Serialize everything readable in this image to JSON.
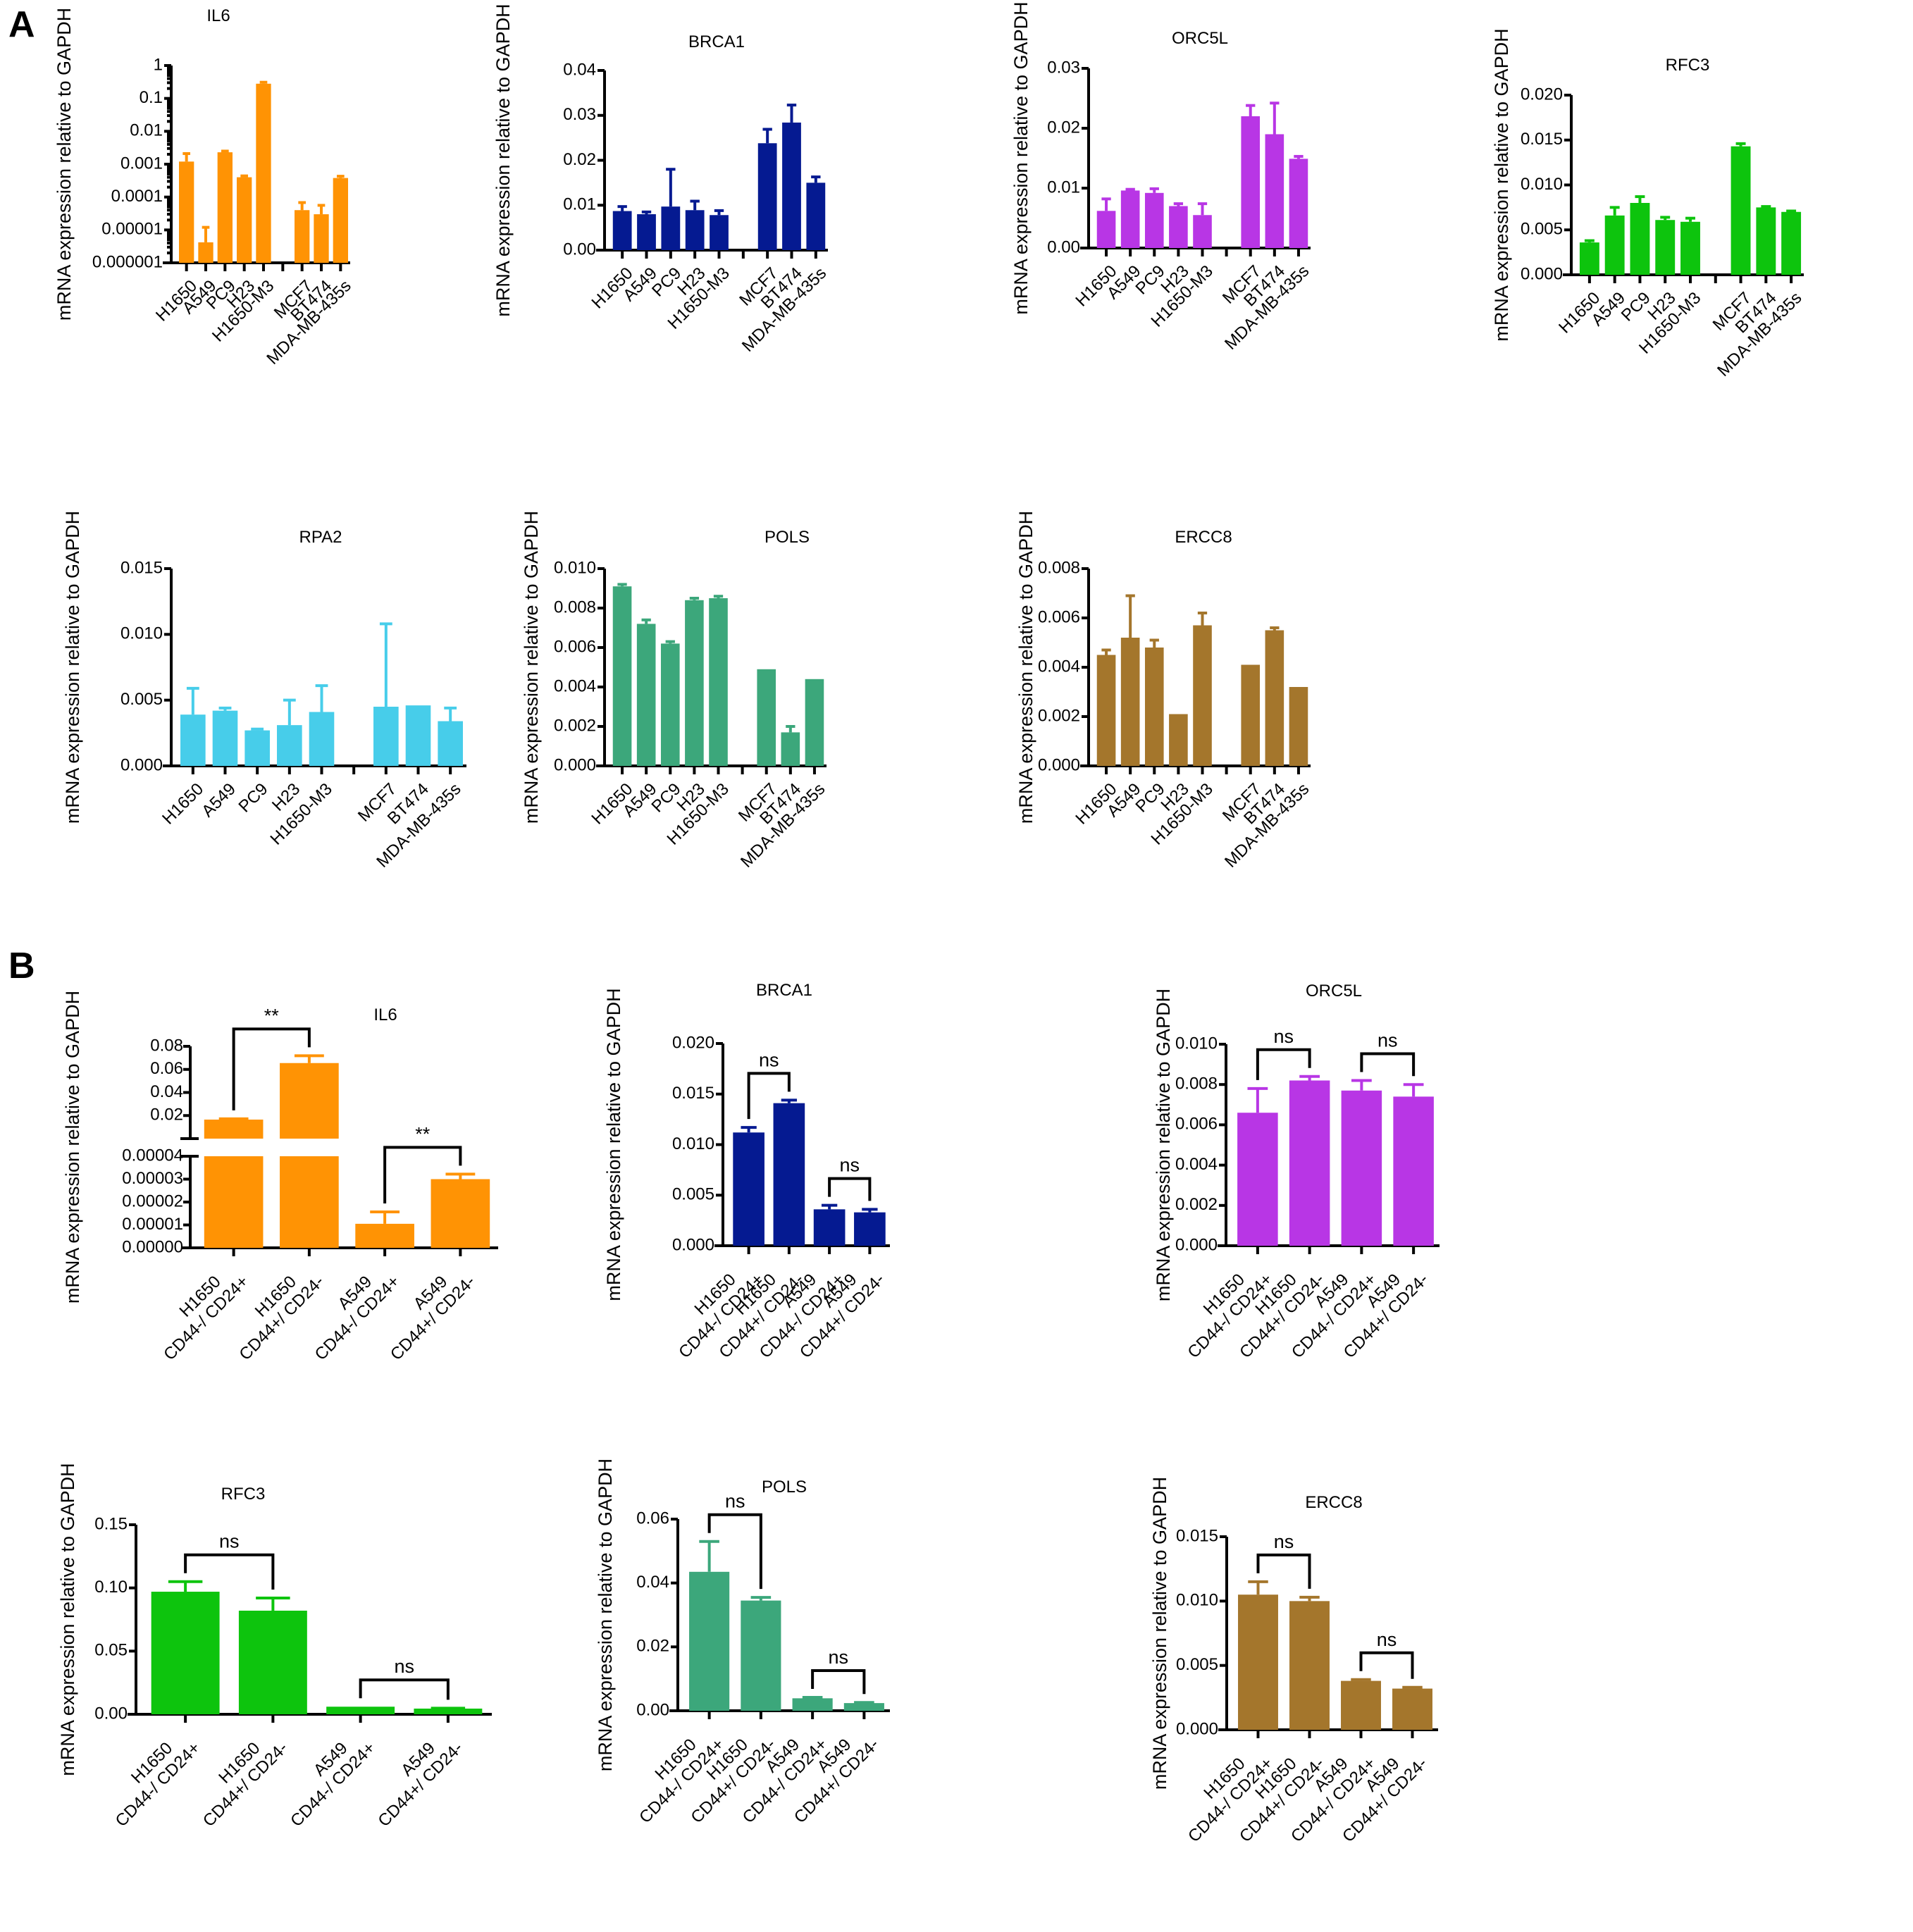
{
  "panels": {
    "A": "A",
    "B": "B"
  },
  "colors": {
    "IL6": "#FF9304",
    "BRCA1": "#051A91",
    "ORC5L": "#B836E5",
    "RFC3": "#0DC40D",
    "RPA2": "#47CDEA",
    "POLS": "#3CA77B",
    "ERCC8": "#A4762C"
  },
  "chart_data": [
    {
      "id": "A-IL6",
      "panel": "A",
      "type": "bar",
      "title": "IL6",
      "ylabel": "mRNA expression relative to GAPDH",
      "yscale": "log",
      "ylim": [
        1e-06,
        1
      ],
      "yticks": [
        1,
        0.1,
        0.01,
        0.001,
        0.0001,
        1e-05,
        1e-06
      ],
      "ytick_labels": [
        "1",
        "0.1",
        "0.01",
        "0.001",
        "0.0001",
        "0.00001",
        "0.000001"
      ],
      "categories": [
        "H1650",
        "A549",
        "PC9",
        "H23",
        "H1650-M3",
        "",
        "MCF7",
        "BT474",
        "MDA-MB-435s"
      ],
      "values": [
        0.0012,
        4.2e-06,
        0.0023,
        0.0004,
        0.28,
        null,
        4e-05,
        3e-05,
        0.00038
      ],
      "error_upper": [
        0.0021,
        1.2e-05,
        0.0025,
        0.00044,
        0.31,
        null,
        6.8e-05,
        5.6e-05,
        0.00043
      ],
      "color_key": "IL6"
    },
    {
      "id": "A-BRCA1",
      "panel": "A",
      "type": "bar",
      "title": "BRCA1",
      "ylabel": "mRNA expression relative to GAPDH",
      "yscale": "linear",
      "ylim": [
        0,
        0.04
      ],
      "yticks": [
        0,
        0.01,
        0.02,
        0.03,
        0.04
      ],
      "ytick_labels": [
        "0.00",
        "0.01",
        "0.02",
        "0.03",
        "0.04"
      ],
      "categories": [
        "H1650",
        "A549",
        "PC9",
        "H23",
        "H1650-M3",
        "",
        "MCF7",
        "BT474",
        "MDA-MB-435s"
      ],
      "values": [
        0.0087,
        0.008,
        0.0097,
        0.0089,
        0.0078,
        null,
        0.0238,
        0.0284,
        0.015
      ],
      "error_upper": [
        0.0097,
        0.0085,
        0.018,
        0.0109,
        0.0088,
        null,
        0.0269,
        0.0323,
        0.0163
      ],
      "color_key": "BRCA1"
    },
    {
      "id": "A-ORC5L",
      "panel": "A",
      "type": "bar",
      "title": "ORC5L",
      "ylabel": "mRNA expression relative to GAPDH",
      "yscale": "linear",
      "ylim": [
        0,
        0.03
      ],
      "yticks": [
        0,
        0.01,
        0.02,
        0.03
      ],
      "ytick_labels": [
        "0.00",
        "0.01",
        "0.02",
        "0.03"
      ],
      "categories": [
        "H1650",
        "A549",
        "PC9",
        "H23",
        "H1650-M3",
        "",
        "MCF7",
        "BT474",
        "MDA-MB-435s"
      ],
      "values": [
        0.0062,
        0.0096,
        0.0092,
        0.007,
        0.0055,
        null,
        0.022,
        0.019,
        0.0149
      ],
      "error_upper": [
        0.0082,
        0.0098,
        0.0099,
        0.0074,
        0.0074,
        null,
        0.0238,
        0.0242,
        0.0153
      ],
      "color_key": "ORC5L"
    },
    {
      "id": "A-RFC3",
      "panel": "A",
      "type": "bar",
      "title": "RFC3",
      "ylabel": "mRNA expression relative to GAPDH",
      "yscale": "linear",
      "ylim": [
        0,
        0.02
      ],
      "yticks": [
        0,
        0.005,
        0.01,
        0.015,
        0.02
      ],
      "ytick_labels": [
        "0.000",
        "0.005",
        "0.010",
        "0.015",
        "0.020"
      ],
      "categories": [
        "H1650",
        "A549",
        "PC9",
        "H23",
        "H1650-M3",
        "",
        "MCF7",
        "BT474",
        "MDA-MB-435s"
      ],
      "values": [
        0.0036,
        0.0066,
        0.008,
        0.0061,
        0.0059,
        null,
        0.0143,
        0.0075,
        0.007
      ],
      "error_upper": [
        0.0038,
        0.0075,
        0.0087,
        0.0064,
        0.0063,
        null,
        0.0146,
        0.0076,
        0.0071
      ],
      "color_key": "RFC3"
    },
    {
      "id": "A-RPA2",
      "panel": "A",
      "type": "bar",
      "title": "RPA2",
      "ylabel": "mRNA expression relative to GAPDH",
      "yscale": "linear",
      "ylim": [
        0,
        0.015
      ],
      "yticks": [
        0,
        0.005,
        0.01,
        0.015
      ],
      "ytick_labels": [
        "0.000",
        "0.005",
        "0.010",
        "0.015"
      ],
      "categories": [
        "H1650",
        "A549",
        "PC9",
        "H23",
        "H1650-M3",
        "",
        "MCF7",
        "BT474",
        "MDA-MB-435s"
      ],
      "values": [
        0.0039,
        0.0042,
        0.0027,
        0.0031,
        0.0041,
        null,
        0.0045,
        0.0046,
        0.0034
      ],
      "error_upper": [
        0.0059,
        0.0044,
        0.0028,
        0.005,
        0.0061,
        null,
        0.0108,
        0.0046,
        0.0044
      ],
      "color_key": "RPA2"
    },
    {
      "id": "A-POLS",
      "panel": "A",
      "type": "bar",
      "title": "POLS",
      "ylabel": "mRNA expression relative to GAPDH",
      "yscale": "linear",
      "ylim": [
        0,
        0.01
      ],
      "yticks": [
        0,
        0.002,
        0.004,
        0.006,
        0.008,
        0.01
      ],
      "ytick_labels": [
        "0.000",
        "0.002",
        "0.004",
        "0.006",
        "0.008",
        "0.010"
      ],
      "categories": [
        "H1650",
        "A549",
        "PC9",
        "H23",
        "H1650-M3",
        "",
        "MCF7",
        "BT474",
        "MDA-MB-435s"
      ],
      "values": [
        0.0091,
        0.0072,
        0.0062,
        0.0084,
        0.0085,
        null,
        0.0049,
        0.0017,
        0.0044
      ],
      "error_upper": [
        0.0092,
        0.0074,
        0.0063,
        0.0085,
        0.0086,
        null,
        0.0049,
        0.002,
        0.0044
      ],
      "color_key": "POLS"
    },
    {
      "id": "A-ERCC8",
      "panel": "A",
      "type": "bar",
      "title": "ERCC8",
      "ylabel": "mRNA expression relative to GAPDH",
      "yscale": "linear",
      "ylim": [
        0,
        0.008
      ],
      "yticks": [
        0,
        0.002,
        0.004,
        0.006,
        0.008
      ],
      "ytick_labels": [
        "0.000",
        "0.002",
        "0.004",
        "0.006",
        "0.008"
      ],
      "categories": [
        "H1650",
        "A549",
        "PC9",
        "H23",
        "H1650-M3",
        "",
        "MCF7",
        "BT474",
        "MDA-MB-435s"
      ],
      "values": [
        0.0045,
        0.0052,
        0.0048,
        0.0021,
        0.0057,
        null,
        0.0041,
        0.0055,
        0.0032
      ],
      "error_upper": [
        0.0047,
        0.0069,
        0.0051,
        0.0021,
        0.0062,
        null,
        0.0041,
        0.0056,
        0.0032
      ],
      "color_key": "ERCC8"
    },
    {
      "id": "B-IL6",
      "panel": "B",
      "type": "bar",
      "title": "IL6",
      "ylabel": "mRNA expression relative to GAPDH",
      "yscale": "broken",
      "ylim_lower": [
        0,
        4e-05
      ],
      "ylim_upper": [
        0,
        0.08
      ],
      "yticks_lower": [
        0,
        1e-05,
        2e-05,
        3e-05,
        4e-05
      ],
      "ytick_labels_lower": [
        "0.00000",
        "0.00001",
        "0.00002",
        "0.00003",
        "0.00004"
      ],
      "yticks_upper": [
        0.02,
        0.04,
        0.06,
        0.08
      ],
      "ytick_labels_upper": [
        "0.02",
        "0.04",
        "0.06",
        "0.08"
      ],
      "categories": [
        "H1650\nCD44-/ CD24+",
        "H1650\nCD44+/ CD24-",
        "A549\nCD44-/ CD24+",
        "A549\nCD44+/ CD24-"
      ],
      "values": [
        0.0165,
        0.0655,
        1.05e-05,
        3e-05
      ],
      "error_upper": [
        0.0172,
        0.0718,
        1.57e-05,
        3.22e-05
      ],
      "significance": [
        {
          "pair": [
            0,
            1
          ],
          "label": "**"
        },
        {
          "pair": [
            2,
            3
          ],
          "label": "**"
        }
      ],
      "color_key": "IL6"
    },
    {
      "id": "B-BRCA1",
      "panel": "B",
      "type": "bar",
      "title": "BRCA1",
      "ylabel": "mRNA expression relative to GAPDH",
      "yscale": "linear",
      "ylim": [
        0,
        0.02
      ],
      "yticks": [
        0,
        0.005,
        0.01,
        0.015,
        0.02
      ],
      "ytick_labels": [
        "0.000",
        "0.005",
        "0.010",
        "0.015",
        "0.020"
      ],
      "categories": [
        "H1650\nCD44-/ CD24+",
        "H1650\nCD44+/ CD24-",
        "A549\nCD44-/ CD24+",
        "A549\nCD44+/ CD24-"
      ],
      "values": [
        0.0112,
        0.0141,
        0.0036,
        0.0033
      ],
      "error_upper": [
        0.0117,
        0.0144,
        0.004,
        0.0036
      ],
      "significance": [
        {
          "pair": [
            0,
            1
          ],
          "label": "ns"
        },
        {
          "pair": [
            2,
            3
          ],
          "label": "ns"
        }
      ],
      "color_key": "BRCA1"
    },
    {
      "id": "B-ORC5L",
      "panel": "B",
      "type": "bar",
      "title": "ORC5L",
      "ylabel": "mRNA expression relative to GAPDH",
      "yscale": "linear",
      "ylim": [
        0,
        0.01
      ],
      "yticks": [
        0,
        0.002,
        0.004,
        0.006,
        0.008,
        0.01
      ],
      "ytick_labels": [
        "0.000",
        "0.002",
        "0.004",
        "0.006",
        "0.008",
        "0.010"
      ],
      "categories": [
        "H1650\nCD44-/ CD24+",
        "H1650\nCD44+/ CD24-",
        "A549\nCD44-/ CD24+",
        "A549\nCD44+/ CD24-"
      ],
      "values": [
        0.0066,
        0.0082,
        0.0077,
        0.0074
      ],
      "error_upper": [
        0.0078,
        0.0084,
        0.0082,
        0.008
      ],
      "significance": [
        {
          "pair": [
            0,
            1
          ],
          "label": "ns"
        },
        {
          "pair": [
            2,
            3
          ],
          "label": "ns"
        }
      ],
      "color_key": "ORC5L"
    },
    {
      "id": "B-RFC3",
      "panel": "B",
      "type": "bar",
      "title": "RFC3",
      "ylabel": "mRNA expression relative to GAPDH",
      "yscale": "linear",
      "ylim": [
        0,
        0.15
      ],
      "yticks": [
        0,
        0.05,
        0.1,
        0.15
      ],
      "ytick_labels": [
        "0.00",
        "0.05",
        "0.10",
        "0.15"
      ],
      "categories": [
        "H1650\nCD44-/ CD24+",
        "H1650\nCD44+/ CD24-",
        "A549\nCD44-/ CD24+",
        "A549\nCD44+/ CD24-"
      ],
      "values": [
        0.097,
        0.082,
        0.006,
        0.0045
      ],
      "error_upper": [
        0.105,
        0.092,
        0.006,
        0.0048
      ],
      "significance": [
        {
          "pair": [
            0,
            1
          ],
          "label": "ns"
        },
        {
          "pair": [
            2,
            3
          ],
          "label": "ns"
        }
      ],
      "color_key": "RFC3"
    },
    {
      "id": "B-POLS",
      "panel": "B",
      "type": "bar",
      "title": "POLS",
      "ylabel": "mRNA expression relative to GAPDH",
      "yscale": "linear",
      "ylim": [
        0,
        0.06
      ],
      "yticks": [
        0,
        0.02,
        0.04,
        0.06
      ],
      "ytick_labels": [
        "0.00",
        "0.02",
        "0.04",
        "0.06"
      ],
      "categories": [
        "H1650\nCD44-/ CD24+",
        "H1650\nCD44+/ CD24-",
        "A549\nCD44-/ CD24+",
        "A549\nCD44+/ CD24-"
      ],
      "values": [
        0.0435,
        0.0345,
        0.0039,
        0.0024
      ],
      "error_upper": [
        0.053,
        0.0355,
        0.0042,
        0.0026
      ],
      "significance": [
        {
          "pair": [
            0,
            1
          ],
          "label": "ns"
        },
        {
          "pair": [
            2,
            3
          ],
          "label": "ns"
        }
      ],
      "color_key": "POLS"
    },
    {
      "id": "B-ERCC8",
      "panel": "B",
      "type": "bar",
      "title": "ERCC8",
      "ylabel": "mRNA expression relative to GAPDH",
      "yscale": "linear",
      "ylim": [
        0,
        0.015
      ],
      "yticks": [
        0,
        0.005,
        0.01,
        0.015
      ],
      "ytick_labels": [
        "0.000",
        "0.005",
        "0.010",
        "0.015"
      ],
      "categories": [
        "H1650\nCD44-/ CD24+",
        "H1650\nCD44+/ CD24-",
        "A549\nCD44-/ CD24+",
        "A549\nCD44+/ CD24-"
      ],
      "values": [
        0.0105,
        0.01,
        0.0038,
        0.0032
      ],
      "error_upper": [
        0.0115,
        0.0103,
        0.0039,
        0.0033
      ],
      "significance": [
        {
          "pair": [
            0,
            1
          ],
          "label": "ns"
        },
        {
          "pair": [
            2,
            3
          ],
          "label": "ns"
        }
      ],
      "color_key": "ERCC8"
    }
  ]
}
